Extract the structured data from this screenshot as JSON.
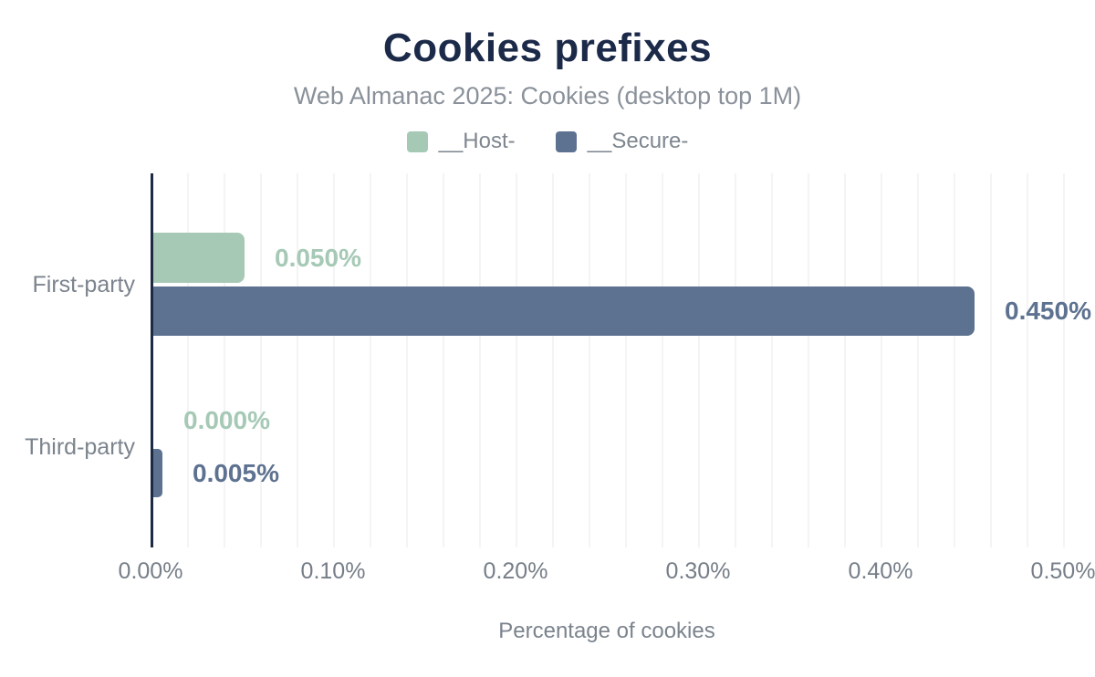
{
  "chart_data": {
    "type": "bar",
    "orientation": "horizontal",
    "title": "Cookies prefixes",
    "subtitle": "Web Almanac 2025: Cookies (desktop top 1M)",
    "xlabel": "Percentage of cookies",
    "xlim": [
      0,
      0.5
    ],
    "x_tick_labels": [
      "0.00%",
      "0.10%",
      "0.20%",
      "0.30%",
      "0.40%",
      "0.50%"
    ],
    "x_tick_values": [
      0,
      0.1,
      0.2,
      0.3,
      0.4,
      0.5
    ],
    "minor_grid_step": 0.02,
    "grid": "vertical minor gridlines, no horizontal",
    "legend_position": "top",
    "categories": [
      "First-party",
      "Third-party"
    ],
    "series": [
      {
        "name": "__Host-",
        "color": "#a6c9b6",
        "values": [
          0.05,
          0
        ],
        "data_labels": [
          "0.050%",
          "0.000%"
        ]
      },
      {
        "name": "__Secure-",
        "color": "#5d7190",
        "values": [
          0.45,
          0.005
        ],
        "data_labels": [
          "0.450%",
          "0.005%"
        ]
      }
    ]
  },
  "colors": {
    "background": "#ffffff",
    "title": "#1c2a49",
    "subtitle": "#8a919a",
    "legend_text": "#7e868f",
    "axis_line": "#1c2a44",
    "gridline": "#f4f4f5",
    "tick_label": "#767e88",
    "category_label": "#7b838d",
    "host_series": "#a6c9b6",
    "secure_series": "#5d7190"
  }
}
